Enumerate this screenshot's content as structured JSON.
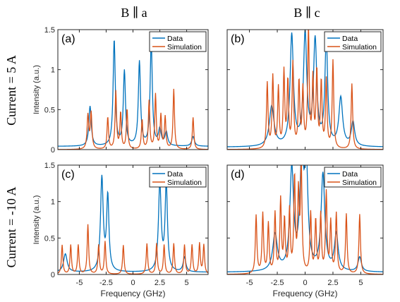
{
  "column_titles": [
    "B ∥ a",
    "B ∥ c"
  ],
  "row_titles": [
    "Current = 5 A",
    "Current = -10 A"
  ],
  "colors": {
    "data": "#0072BD",
    "simulation": "#D95319"
  },
  "chart_data": [
    {
      "type": "line",
      "label": "(a)",
      "xlabel": "",
      "ylabel": "Intensity (a.u.)",
      "xlim": [
        -7,
        7
      ],
      "ylim": [
        0,
        1.5
      ],
      "yticks": [
        "0",
        "0.5",
        "1",
        "1.5"
      ],
      "xticks": [],
      "legend": [
        "Data",
        "Simulation"
      ],
      "legend_position": "top-right",
      "series": [
        {
          "name": "Data",
          "baseline": 0.04,
          "peaks": [
            [
              -4.0,
              0.5,
              0.13
            ],
            [
              -1.75,
              1.32,
              0.12
            ],
            [
              -0.8,
              0.93,
              0.12
            ],
            [
              0.6,
              1.05,
              0.12
            ],
            [
              1.7,
              1.3,
              0.12
            ],
            [
              2.5,
              0.2,
              0.15
            ],
            [
              3.1,
              0.17,
              0.15
            ],
            [
              5.6,
              0.12,
              0.15
            ]
          ]
        },
        {
          "name": "Simulation",
          "baseline": 0.0,
          "peaks": [
            [
              -4.2,
              0.42,
              0.09
            ],
            [
              -3.9,
              0.45,
              0.09
            ],
            [
              -2.35,
              0.4,
              0.08
            ],
            [
              -1.6,
              0.72,
              0.08
            ],
            [
              -1.15,
              0.45,
              0.08
            ],
            [
              -0.55,
              0.5,
              0.08
            ],
            [
              0.85,
              0.37,
              0.08
            ],
            [
              1.5,
              0.6,
              0.08
            ],
            [
              2.1,
              0.68,
              0.08
            ],
            [
              2.6,
              0.42,
              0.08
            ],
            [
              3.0,
              0.4,
              0.08
            ],
            [
              3.8,
              0.75,
              0.08
            ],
            [
              5.6,
              0.4,
              0.08
            ]
          ]
        }
      ]
    },
    {
      "type": "line",
      "label": "(b)",
      "xlabel": "",
      "ylabel": "",
      "xlim": [
        -7,
        7
      ],
      "ylim": [
        0,
        1.5
      ],
      "yticks": [],
      "xticks": [],
      "legend": [
        "Data",
        "Simulation"
      ],
      "legend_position": "top-right",
      "series": [
        {
          "name": "Data",
          "baseline": 0.03,
          "peaks": [
            [
              -3.0,
              0.5,
              0.25
            ],
            [
              -1.2,
              1.38,
              0.18
            ],
            [
              0.0,
              1.38,
              0.18
            ],
            [
              0.9,
              1.3,
              0.18
            ],
            [
              1.9,
              1.3,
              0.15
            ],
            [
              3.2,
              0.6,
              0.2
            ],
            [
              4.3,
              0.3,
              0.18
            ]
          ]
        },
        {
          "name": "Simulation",
          "baseline": 0.0,
          "peaks": [
            [
              -3.4,
              0.82,
              0.08
            ],
            [
              -2.9,
              0.9,
              0.08
            ],
            [
              -2.4,
              0.75,
              0.08
            ],
            [
              -1.9,
              0.95,
              0.08
            ],
            [
              -1.55,
              0.82,
              0.08
            ],
            [
              -1.1,
              1.05,
              0.08
            ],
            [
              -0.55,
              0.82,
              0.08
            ],
            [
              -0.2,
              0.72,
              0.08
            ],
            [
              0.3,
              1.5,
              0.08
            ],
            [
              0.7,
              0.85,
              0.08
            ],
            [
              1.05,
              0.95,
              0.08
            ],
            [
              1.45,
              0.82,
              0.08
            ],
            [
              1.9,
              0.85,
              0.08
            ],
            [
              2.5,
              1.1,
              0.08
            ],
            [
              4.2,
              0.82,
              0.08
            ]
          ]
        }
      ]
    },
    {
      "type": "line",
      "label": "(c)",
      "xlabel": "Frequency (GHz)",
      "ylabel": "Intensity (a.u.)",
      "xlim": [
        -7,
        7
      ],
      "ylim": [
        0,
        1.5
      ],
      "yticks": [
        "0",
        "0.5",
        "1",
        "1.5"
      ],
      "xticks": [
        "-5",
        "-2.5",
        "0",
        "2.5",
        "5"
      ],
      "legend": [
        "Data",
        "Simulation"
      ],
      "legend_position": "top-right",
      "series": [
        {
          "name": "Data",
          "baseline": 0.03,
          "peaks": [
            [
              -2.9,
              1.28,
              0.15
            ],
            [
              -2.35,
              1.02,
              0.13
            ],
            [
              2.5,
              1.2,
              0.15
            ],
            [
              3.1,
              1.2,
              0.13
            ],
            [
              4.8,
              0.2,
              0.15
            ],
            [
              -6.3,
              0.25,
              0.2
            ]
          ]
        },
        {
          "name": "Simulation",
          "baseline": 0.0,
          "peaks": [
            [
              -6.6,
              0.4,
              0.08
            ],
            [
              -5.8,
              0.4,
              0.08
            ],
            [
              -5.1,
              0.4,
              0.08
            ],
            [
              -4.2,
              0.68,
              0.08
            ],
            [
              -3.2,
              0.4,
              0.08
            ],
            [
              -2.6,
              0.45,
              0.08
            ],
            [
              -0.9,
              0.4,
              0.08
            ],
            [
              1.3,
              0.42,
              0.08
            ],
            [
              2.2,
              0.42,
              0.08
            ],
            [
              2.9,
              0.4,
              0.08
            ],
            [
              3.8,
              0.42,
              0.08
            ],
            [
              4.8,
              0.4,
              0.08
            ],
            [
              5.5,
              0.4,
              0.08
            ],
            [
              6.2,
              0.42,
              0.08
            ],
            [
              6.6,
              0.4,
              0.08
            ]
          ]
        }
      ]
    },
    {
      "type": "line",
      "label": "(d)",
      "xlabel": "Frequency (GHz)",
      "ylabel": "",
      "xlim": [
        -7,
        7
      ],
      "ylim": [
        0,
        1.5
      ],
      "yticks": [],
      "xticks": [
        "-5",
        "-2.5",
        "0",
        "2.5",
        "5"
      ],
      "legend": [
        "Data",
        "Simulation"
      ],
      "legend_position": "top-right",
      "series": [
        {
          "name": "Data",
          "baseline": 0.03,
          "peaks": [
            [
              -2.7,
              0.5,
              0.25
            ],
            [
              -1.2,
              1.38,
              0.2
            ],
            [
              -0.3,
              1.45,
              0.2
            ],
            [
              0.1,
              1.38,
              0.18
            ],
            [
              1.6,
              1.32,
              0.2
            ],
            [
              2.8,
              0.5,
              0.2
            ],
            [
              4.9,
              0.2,
              0.18
            ]
          ]
        },
        {
          "name": "Simulation",
          "baseline": 0.0,
          "peaks": [
            [
              -4.4,
              0.8,
              0.08
            ],
            [
              -3.8,
              0.82,
              0.08
            ],
            [
              -3.3,
              0.68,
              0.08
            ],
            [
              -2.7,
              0.82,
              0.08
            ],
            [
              -2.2,
              1.0,
              0.08
            ],
            [
              -1.85,
              0.72,
              0.08
            ],
            [
              -1.4,
              0.85,
              0.08
            ],
            [
              -0.95,
              1.3,
              0.08
            ],
            [
              -0.6,
              1.05,
              0.08
            ],
            [
              -0.35,
              1.5,
              0.08
            ],
            [
              0.5,
              0.82,
              0.08
            ],
            [
              0.95,
              0.72,
              0.08
            ],
            [
              1.4,
              0.8,
              0.08
            ],
            [
              1.9,
              1.1,
              0.08
            ],
            [
              2.3,
              0.7,
              0.08
            ],
            [
              2.8,
              0.82,
              0.08
            ],
            [
              3.7,
              0.82,
              0.08
            ],
            [
              4.9,
              0.82,
              0.08
            ]
          ]
        }
      ]
    }
  ]
}
